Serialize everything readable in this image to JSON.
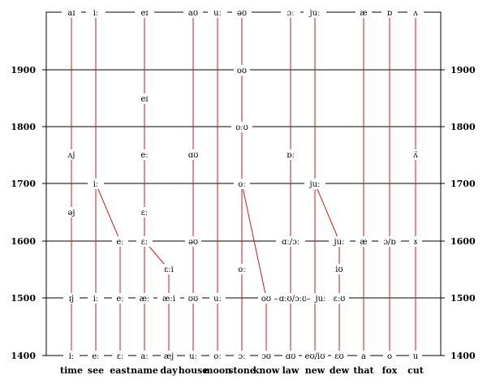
{
  "years": [
    "1400",
    "1500",
    "1600",
    "1700",
    "1800",
    "1900"
  ],
  "words": [
    "time",
    "see",
    "east",
    "name",
    "day",
    "house",
    "moon",
    "stone",
    "know",
    "law",
    "new",
    "dew",
    "that",
    "fox",
    "cut"
  ],
  "top_row": [
    "aɪ",
    "iː",
    "eɪ",
    "aʊ",
    "uː",
    "əʊ",
    "ɔː",
    "juː",
    "æ",
    "ɒ",
    "ʌ"
  ],
  "row_1900": [
    "oʊ"
  ],
  "row_1850": [
    "eɪ"
  ],
  "row_1800": [
    "oːʊ"
  ],
  "row_1750": [
    "ʌj",
    "eː",
    "ɑʊ",
    "ɒː",
    "ʌ̈"
  ],
  "row_1700": [
    "iː",
    "oː",
    "juː"
  ],
  "row_1650": [
    "əj",
    "ɛː"
  ],
  "row_1600": [
    "eː",
    "ɛː",
    "əʊ",
    "ɑː/ɔː",
    "juː",
    "æ",
    "ɔ/ɒ",
    "ɤ"
  ],
  "row_1560": [
    "ɛːi",
    "oː",
    "iʊ"
  ],
  "row_1500": [
    "ɪj",
    "iː",
    "eː",
    "æː",
    "æːi",
    "ʊʊ",
    "uː",
    "oʊ",
    "ɑːʊ/ɔːʊ",
    "juː",
    "ɛːʊ"
  ],
  "row_1500_sep": [
    "–",
    "–"
  ],
  "bottom_row": [
    "iː",
    "eː",
    "ɛː",
    "aː",
    "æj",
    "uː",
    "oː",
    "ɔː",
    "ɔʊ",
    "ɑʊ",
    "eʊ/iʊ",
    "ɛʊ",
    "a",
    "o",
    "u"
  ]
}
